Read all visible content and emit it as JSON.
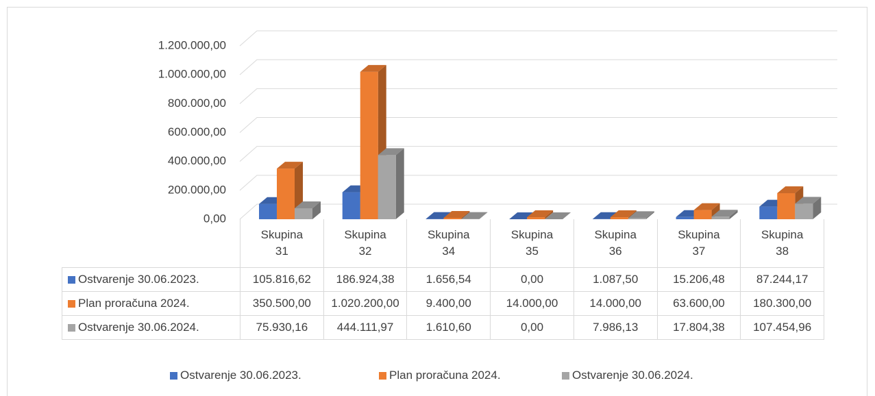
{
  "chart_data": {
    "type": "bar3d",
    "categories": [
      "Skupina 31",
      "Skupina 32",
      "Skupina 34",
      "Skupina 35",
      "Skupina 36",
      "Skupina 37",
      "Skupina 38"
    ],
    "series": [
      {
        "name": "Ostvarenje 30.06.2023.",
        "color": "#4472c4",
        "values": [
          105816.62,
          186924.38,
          1656.54,
          0,
          1087.5,
          15206.48,
          87244.17
        ],
        "value_labels": [
          "105.816,62",
          "186.924,38",
          "1.656,54",
          "0,00",
          "1.087,50",
          "15.206,48",
          "87.244,17"
        ]
      },
      {
        "name": "Plan proračuna 2024.",
        "color": "#ed7d31",
        "values": [
          350500,
          1020200,
          9400,
          14000,
          14000,
          63600,
          180300
        ],
        "value_labels": [
          "350.500,00",
          "1.020.200,00",
          "9.400,00",
          "14.000,00",
          "14.000,00",
          "63.600,00",
          "180.300,00"
        ]
      },
      {
        "name": "Ostvarenje 30.06.2024.",
        "color": "#a5a5a5",
        "values": [
          75930.16,
          444111.97,
          1610.6,
          0,
          7986.13,
          17804.38,
          107454.96
        ],
        "value_labels": [
          "75.930,16",
          "444.111,97",
          "1.610,60",
          "0,00",
          "7.986,13",
          "17.804,38",
          "107.454,96"
        ]
      }
    ],
    "ylim": [
      0,
      1200000
    ],
    "yticks": [
      {
        "value": 0,
        "label": "0,00"
      },
      {
        "value": 200000,
        "label": "200.000,00"
      },
      {
        "value": 400000,
        "label": "400.000,00"
      },
      {
        "value": 600000,
        "label": "600.000,00"
      },
      {
        "value": 800000,
        "label": "800.000,00"
      },
      {
        "value": 1000000,
        "label": "1.000.000,00"
      },
      {
        "value": 1200000,
        "label": "1.200.000,00"
      }
    ],
    "grid": true
  }
}
